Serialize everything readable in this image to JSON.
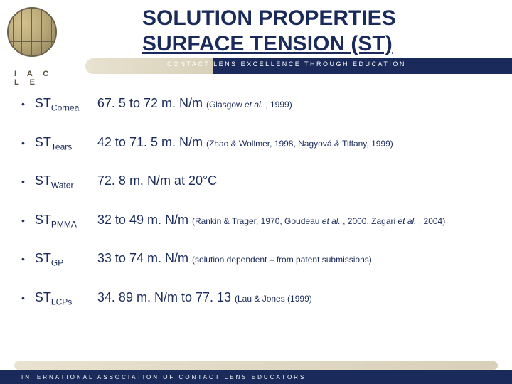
{
  "header": {
    "logo_letters": "I A C L E",
    "title_line1": "SOLUTION PROPERTIES",
    "title_line2": "SURFACE TENSION (ST)",
    "tagline": "CONTACT LENS EXCELLENCE THROUGH EDUCATION"
  },
  "items": [
    {
      "label": "ST",
      "sub": "Cornea",
      "value": "67. 5 to 72 m. N/m ",
      "ref": "(Glasgow ",
      "ref_em": "et al.",
      "ref2": " , 1999)"
    },
    {
      "label": "ST",
      "sub": "Tears",
      "value": "42 to 71. 5 m. N/m ",
      "ref": "(Zhao & Wollmer, 1998, Nagyová & Tiffany, 1999)"
    },
    {
      "label": "ST",
      "sub": "Water",
      "value": "72. 8 m. N/m at 20°C",
      "ref": ""
    },
    {
      "label": "ST",
      "sub": "PMMA",
      "value": "32 to 49 m. N/m ",
      "ref": "(Rankin & Trager, 1970, Goudeau ",
      "ref_em": "et al.",
      "ref2": " , 2000, Zagari ",
      "ref_em2": "et al.",
      "ref3": " , 2004)"
    },
    {
      "label": "ST",
      "sub": "GP",
      "value": "33 to 74 m. N/m ",
      "ref": "(solution dependent – from patent submissions)"
    },
    {
      "label": "ST",
      "sub": "LCPs",
      "value": "34. 89 m. N/m to 77. 13 ",
      "ref": "(Lau & Jones (1999)"
    }
  ],
  "footer": {
    "text": "INTERNATIONAL ASSOCIATION OF CONTACT LENS EDUCATORS"
  }
}
